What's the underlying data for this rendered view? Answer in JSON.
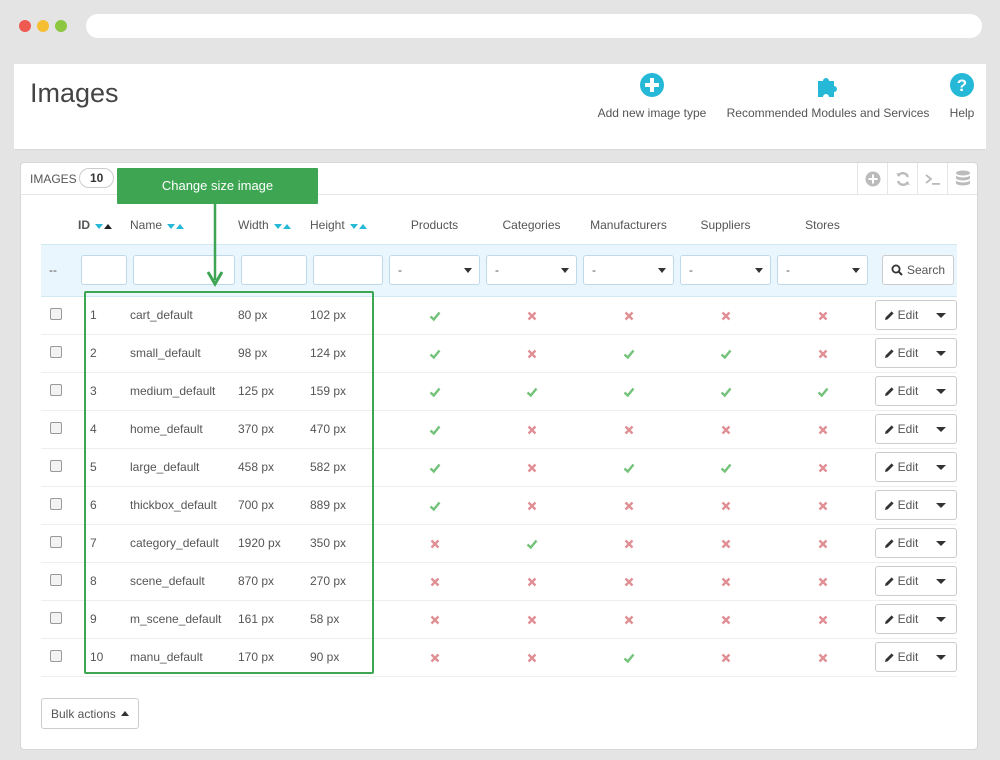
{
  "page": {
    "title": "Images"
  },
  "toolbar": {
    "add_label": "Add new image type",
    "modules_label": "Recommended Modules and Services",
    "help_label": "Help"
  },
  "panel": {
    "title": "IMAGES",
    "count": "10"
  },
  "annotation": {
    "text": "Change size image"
  },
  "columns": {
    "id": "ID",
    "name": "Name",
    "width": "Width",
    "height": "Height",
    "products": "Products",
    "categories": "Categories",
    "manufacturers": "Manufacturers",
    "suppliers": "Suppliers",
    "stores": "Stores"
  },
  "filters": {
    "id_placeholder": "--",
    "select_value": "-",
    "search_label": "Search"
  },
  "rows": [
    {
      "id": "1",
      "name": "cart_default",
      "width": "80 px",
      "height": "102 px",
      "products": true,
      "categories": false,
      "manufacturers": false,
      "suppliers": false,
      "stores": false
    },
    {
      "id": "2",
      "name": "small_default",
      "width": "98 px",
      "height": "124 px",
      "products": true,
      "categories": false,
      "manufacturers": true,
      "suppliers": true,
      "stores": false
    },
    {
      "id": "3",
      "name": "medium_default",
      "width": "125 px",
      "height": "159 px",
      "products": true,
      "categories": true,
      "manufacturers": true,
      "suppliers": true,
      "stores": true
    },
    {
      "id": "4",
      "name": "home_default",
      "width": "370 px",
      "height": "470 px",
      "products": true,
      "categories": false,
      "manufacturers": false,
      "suppliers": false,
      "stores": false
    },
    {
      "id": "5",
      "name": "large_default",
      "width": "458 px",
      "height": "582 px",
      "products": true,
      "categories": false,
      "manufacturers": true,
      "suppliers": true,
      "stores": false
    },
    {
      "id": "6",
      "name": "thickbox_default",
      "width": "700 px",
      "height": "889 px",
      "products": true,
      "categories": false,
      "manufacturers": false,
      "suppliers": false,
      "stores": false
    },
    {
      "id": "7",
      "name": "category_default",
      "width": "1920 px",
      "height": "350 px",
      "products": false,
      "categories": true,
      "manufacturers": false,
      "suppliers": false,
      "stores": false
    },
    {
      "id": "8",
      "name": "scene_default",
      "width": "870 px",
      "height": "270 px",
      "products": false,
      "categories": false,
      "manufacturers": false,
      "suppliers": false,
      "stores": false
    },
    {
      "id": "9",
      "name": "m_scene_default",
      "width": "161 px",
      "height": "58 px",
      "products": false,
      "categories": false,
      "manufacturers": false,
      "suppliers": false,
      "stores": false
    },
    {
      "id": "10",
      "name": "manu_default",
      "width": "170 px",
      "height": "90 px",
      "products": false,
      "categories": false,
      "manufacturers": true,
      "suppliers": false,
      "stores": false
    }
  ],
  "row_action": {
    "edit_label": "Edit"
  },
  "footer": {
    "bulk_label": "Bulk actions"
  },
  "colors": {
    "accent": "#25b9d7",
    "check": "#72c279",
    "cross": "#e08f95",
    "annotation": "#3ea653"
  },
  "icons": {
    "add": "plus-circle-icon",
    "modules": "puzzle-icon",
    "help": "question-circle-icon",
    "yes": "check-icon",
    "no": "cross-icon",
    "edit": "pencil-icon",
    "search": "search-icon"
  }
}
